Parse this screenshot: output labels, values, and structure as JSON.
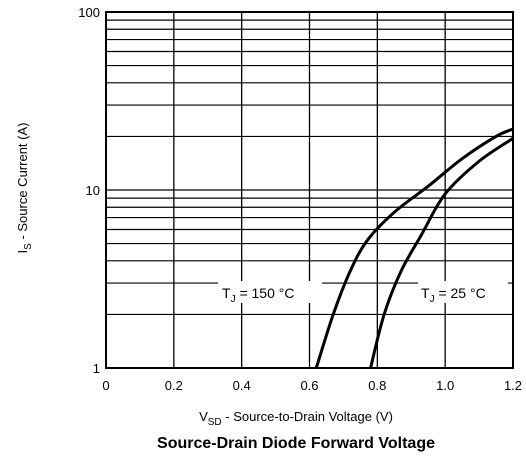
{
  "chart_data": {
    "type": "line",
    "title": "Source-Drain Diode Forward Voltage",
    "xlabel": "VSD - Source-to-Drain Voltage (V)",
    "xlabel_main": "V",
    "xlabel_sub": "SD",
    "xlabel_rest": " - Source-to-Drain Voltage (V)",
    "ylabel": "IS - Source Current (A)",
    "ylabel_main": "I",
    "ylabel_sub": "S",
    "ylabel_rest": " - Source Current (A)",
    "xlim": [
      0,
      1.2
    ],
    "ylim": [
      1,
      100
    ],
    "yscale": "log",
    "grid": true,
    "x_ticks": [
      "0",
      "0.2",
      "0.4",
      "0.6",
      "0.8",
      "1.0",
      "1.2"
    ],
    "y_ticks": [
      "1",
      "10",
      "100"
    ],
    "series": [
      {
        "name": "TJ = 150 °C",
        "label_main": "T",
        "label_sub": "J",
        "label_rest": " = 150 °C",
        "points": [
          [
            0.62,
            1
          ],
          [
            0.67,
            2
          ],
          [
            0.72,
            3.5
          ],
          [
            0.77,
            5.2
          ],
          [
            0.85,
            7.5
          ],
          [
            0.95,
            10.5
          ],
          [
            1.05,
            15
          ],
          [
            1.15,
            20
          ],
          [
            1.2,
            22
          ]
        ]
      },
      {
        "name": "TJ = 25 °C",
        "label_main": "T",
        "label_sub": "J",
        "label_rest": " = 25 °C",
        "points": [
          [
            0.78,
            1
          ],
          [
            0.82,
            2
          ],
          [
            0.87,
            3.5
          ],
          [
            0.93,
            5.6
          ],
          [
            1.0,
            9.5
          ],
          [
            1.1,
            14.5
          ],
          [
            1.2,
            19.5
          ]
        ]
      }
    ]
  }
}
